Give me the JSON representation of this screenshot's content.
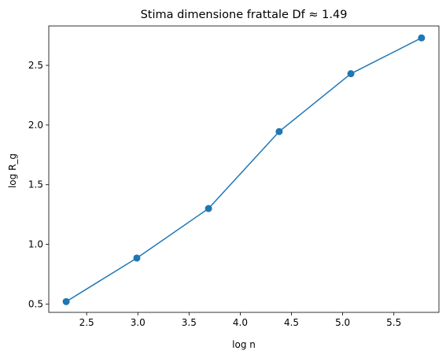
{
  "chart_data": {
    "type": "line",
    "title": "Stima dimensione frattale Df ≈ 1.49",
    "xlabel": "log n",
    "ylabel": "log R_g",
    "xlim": [
      2.13,
      5.94
    ],
    "ylim": [
      0.43,
      2.83
    ],
    "x_ticks": [
      2.5,
      3.0,
      3.5,
      4.0,
      4.5,
      5.0,
      5.5
    ],
    "x_tick_labels": [
      "2.5",
      "3.0",
      "3.5",
      "4.0",
      "4.5",
      "5.0",
      "5.5"
    ],
    "y_ticks": [
      0.5,
      1.0,
      1.5,
      2.0,
      2.5
    ],
    "y_tick_labels": [
      "0.5",
      "1.0",
      "1.5",
      "2.0",
      "2.5"
    ],
    "grid": false,
    "series": [
      {
        "x": [
          2.3,
          2.99,
          3.69,
          4.38,
          5.08,
          5.77
        ],
        "y": [
          0.52,
          0.885,
          1.3,
          1.945,
          2.43,
          2.73
        ],
        "color": "#1f77b4",
        "marker": "circle"
      }
    ]
  }
}
